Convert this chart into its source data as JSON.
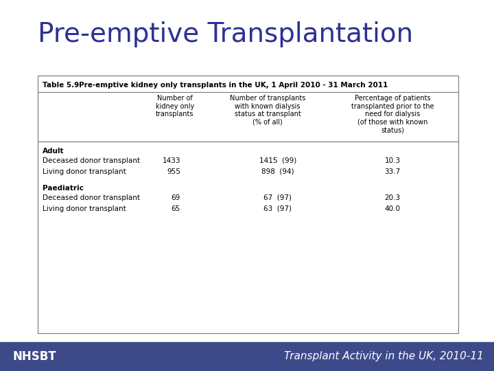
{
  "title": "Pre-emptive Transplantation",
  "title_color": "#2E3192",
  "title_fontsize": 28,
  "bg_color": "#FFFFFF",
  "footer_bg_color": "#3D4A8A",
  "footer_text_left": "NHSBT",
  "footer_text_right": "Transplant Activity in the UK, 2010-11",
  "footer_fontsize": 12,
  "table_title": "Table 5.9",
  "table_subtitle": "Pre-emptive kidney only transplants in the UK, 1 April 2010 - 31 March 2011",
  "col_headers": [
    "Number of\nkidney only\ntransplants",
    "Number of transplants\nwith known dialysis\nstatus at transplant\n(% of all)",
    "Percentage of patients\ntransplanted prior to the\nneed for dialysis\n(of those with known\nstatus)"
  ],
  "section_adult": "Adult",
  "section_paediatric": "Paediatric",
  "rows": [
    {
      "label": "Deceased donor transplant",
      "col1": "1433",
      "col2": "1415  (99)",
      "col3": "10.3",
      "section": "Adult"
    },
    {
      "label": "Living donor transplant",
      "col1": "955",
      "col2": "898  (94)",
      "col3": "33.7",
      "section": "Adult"
    },
    {
      "label": "Deceased donor transplant",
      "col1": "69",
      "col2": "67  (97)",
      "col3": "20.3",
      "section": "Paediatric"
    },
    {
      "label": "Living donor transplant",
      "col1": "65",
      "col2": "63  (97)",
      "col3": "40.0",
      "section": "Paediatric"
    }
  ]
}
